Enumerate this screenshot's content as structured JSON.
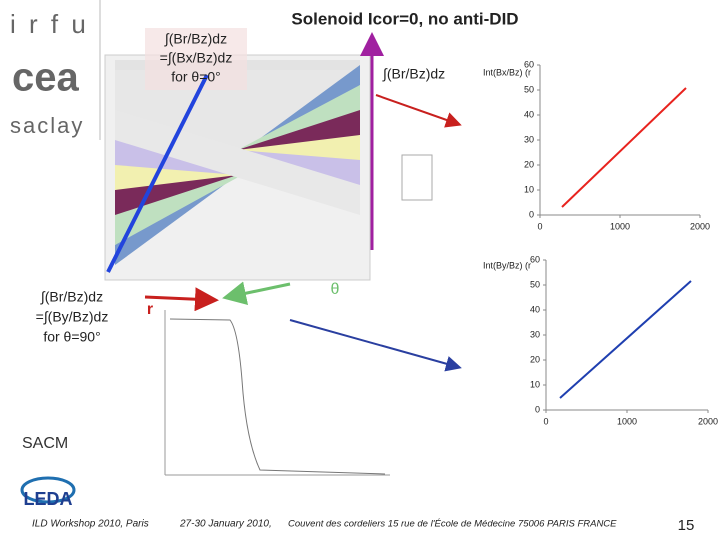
{
  "logos": {
    "top": "i r f u",
    "middle": "cea",
    "bottom": "saclay",
    "lab": "SACM",
    "project": "LEDA"
  },
  "title": "Solenoid Icor=0, no anti-DID",
  "annotations": {
    "theta0": [
      "∫(Br/Bz)dz",
      "=∫(Bx/Bz)dz",
      "for θ=0°"
    ],
    "top_right": "∫(Br/Bz)dz",
    "theta90": [
      "∫(Br/Bz)dz",
      "=∫(By/Bz)dz",
      "for θ=90°"
    ],
    "r": "r",
    "theta": "θ"
  },
  "footer": {
    "event": "ILD Workshop 2010, Paris",
    "dates": "27-30 January 2010,",
    "venue": "Couvent des cordeliers  15 rue de l'École de Médecine 75006 PARIS FRANCE",
    "page": "15"
  },
  "chart_data": [
    {
      "type": "line",
      "title": "Int(Bx/Bz) (r",
      "x": [
        275,
        1825
      ],
      "series": [
        {
          "color": "#e8231e",
          "values": [
            3.2,
            50.8
          ]
        }
      ],
      "xlim": [
        0,
        2000
      ],
      "xticks": [
        0,
        1000,
        2000
      ],
      "ylim": [
        0,
        60
      ],
      "yticks": [
        0,
        10,
        20,
        30,
        40,
        50,
        60
      ]
    },
    {
      "type": "line",
      "title": "Int(By/Bz) (r",
      "x": [
        173,
        1790
      ],
      "series": [
        {
          "color": "#1f3fb0",
          "values": [
            4.8,
            51.6
          ]
        }
      ],
      "xlim": [
        0,
        2000
      ],
      "xticks": [
        0,
        1000,
        2000
      ],
      "ylim": [
        0,
        60
      ],
      "yticks": [
        0,
        10,
        20,
        30,
        40,
        50,
        60
      ]
    }
  ]
}
